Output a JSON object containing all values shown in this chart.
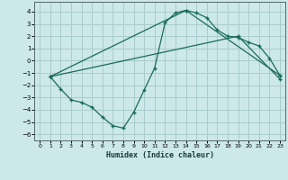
{
  "xlabel": "Humidex (Indice chaleur)",
  "xlim": [
    -0.5,
    23.5
  ],
  "ylim": [
    -6.5,
    4.8
  ],
  "yticks": [
    -6,
    -5,
    -4,
    -3,
    -2,
    -1,
    0,
    1,
    2,
    3,
    4
  ],
  "xticks": [
    0,
    1,
    2,
    3,
    4,
    5,
    6,
    7,
    8,
    9,
    10,
    11,
    12,
    13,
    14,
    15,
    16,
    17,
    18,
    19,
    20,
    21,
    22,
    23
  ],
  "bg_color": "#cce8e8",
  "grid_color": "#aacccc",
  "line_color": "#1a6b5a",
  "line1_x": [
    1,
    2,
    3,
    4,
    5,
    6,
    7,
    8,
    9,
    10,
    11,
    12,
    13,
    14,
    15,
    16,
    17,
    18,
    19,
    20,
    21,
    22,
    23
  ],
  "line1_y": [
    -1.3,
    -2.3,
    -3.2,
    -3.4,
    -3.8,
    -4.6,
    -5.3,
    -5.5,
    -4.2,
    -2.4,
    -0.6,
    3.1,
    3.9,
    4.1,
    3.9,
    3.5,
    2.5,
    2.0,
    1.9,
    1.5,
    1.2,
    0.2,
    -1.2
  ],
  "line2_x": [
    1,
    14,
    23
  ],
  "line2_y": [
    -1.3,
    4.1,
    -1.2
  ],
  "line3_x": [
    1,
    19,
    23
  ],
  "line3_y": [
    -1.3,
    2.0,
    -1.5
  ]
}
